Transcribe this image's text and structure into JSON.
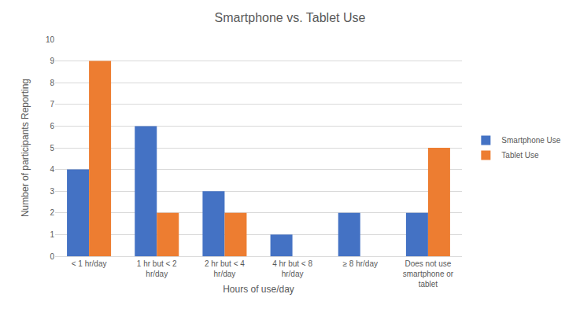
{
  "chart_data": {
    "type": "bar",
    "title": "Smartphone vs. Tablet Use",
    "x_label": "Hours of use/day",
    "y_label": "Number of participants Reporting",
    "categories": [
      "< 1 hr/day",
      "1 hr but < 2 hr/day",
      "2 hr but < 4 hr/day",
      "4 hr but < 8 hr/day",
      "≥ 8 hr/day",
      "Does not use smartphone or tablet"
    ],
    "series": [
      {
        "name": "Smartphone Use",
        "color": "#4472c4",
        "values": [
          4,
          6,
          3,
          1,
          2,
          2
        ]
      },
      {
        "name": "Tablet Use",
        "color": "#ed7d31",
        "values": [
          9,
          2,
          2,
          0,
          0,
          5
        ]
      }
    ],
    "ylim": [
      0,
      10
    ],
    "yticks": [
      0,
      1,
      2,
      3,
      4,
      5,
      6,
      7,
      8,
      9,
      10
    ],
    "grid": true,
    "legend": "right"
  }
}
